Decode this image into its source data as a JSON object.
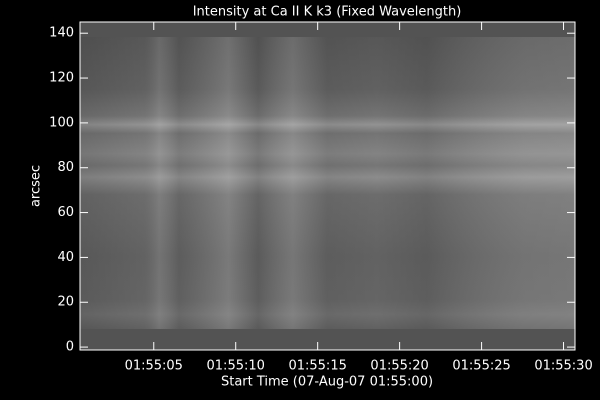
{
  "chart_data": {
    "type": "image",
    "title": "Intensity at Ca II K k3 (Fixed Wavelength)",
    "x_label": "Start Time (07-Aug-07 01:55:00)",
    "y_label": "arcsec",
    "xlim": [
      0.5,
      30.7
    ],
    "xticks": [
      {
        "value": 5,
        "label": "01:55:05"
      },
      {
        "value": 10,
        "label": "01:55:10"
      },
      {
        "value": 15,
        "label": "01:55:15"
      },
      {
        "value": 20,
        "label": "01:55:20"
      },
      {
        "value": 25,
        "label": "01:55:25"
      },
      {
        "value": 30,
        "label": "01:55:30"
      }
    ],
    "ylim": [
      -1.3,
      145
    ],
    "yticks": [
      0,
      20,
      40,
      60,
      80,
      100,
      120,
      140
    ]
  }
}
